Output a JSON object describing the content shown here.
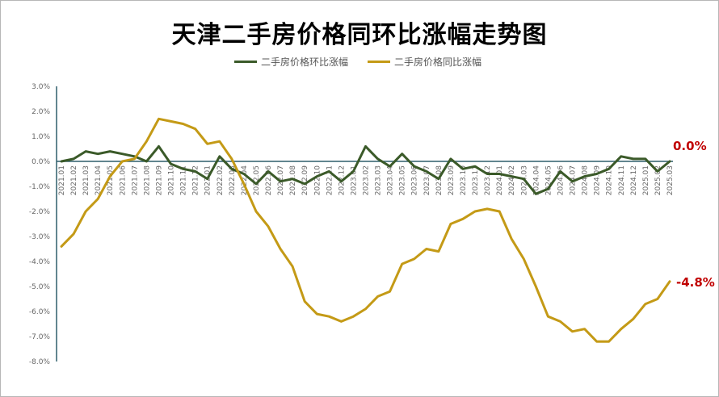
{
  "chart_data": {
    "type": "line",
    "title": "天津二手房价格同环比涨幅走势图",
    "xlabel": "",
    "ylabel": "",
    "ylim": [
      -8.0,
      3.0
    ],
    "ytick_step": 1.0,
    "grid": false,
    "legend_position": "top-center",
    "categories": [
      "2021.01",
      "2021.02",
      "2021.03",
      "2021.04",
      "2021.05",
      "2021.06",
      "2021.07",
      "2021.08",
      "2021.09",
      "2021.10",
      "2021.11",
      "2021.12",
      "2022.01",
      "2022.02",
      "2022.03",
      "2022.04",
      "2022.05",
      "2022.06",
      "2022.07",
      "2022.08",
      "2022.09",
      "2022.10",
      "2022.11",
      "2022.12",
      "2023.01",
      "2023.02",
      "2023.03",
      "2023.04",
      "2023.05",
      "2023.06",
      "2023.07",
      "2023.08",
      "2023.09",
      "2023.10",
      "2023.11",
      "2023.12",
      "2024.01",
      "2024.02",
      "2024.03",
      "2024.04",
      "2024.05",
      "2024.06",
      "2024.07",
      "2024.08",
      "2024.09",
      "2024.10",
      "2024.11",
      "2024.12",
      "2025.01",
      "2025.02",
      "2025.03"
    ],
    "series": [
      {
        "name": "二手房价格环比涨幅",
        "color": "#3b5a29",
        "values": [
          0.0,
          0.1,
          0.4,
          0.3,
          0.4,
          0.3,
          0.2,
          0.0,
          0.6,
          -0.1,
          -0.3,
          -0.4,
          -0.7,
          0.2,
          -0.3,
          -0.5,
          -0.9,
          -0.4,
          -0.8,
          -0.7,
          -0.9,
          -0.6,
          -0.4,
          -0.8,
          -0.4,
          0.6,
          0.1,
          -0.2,
          0.3,
          -0.2,
          -0.4,
          -0.7,
          0.1,
          -0.3,
          -0.2,
          -0.5,
          -0.5,
          -0.6,
          -0.7,
          -1.3,
          -1.1,
          -0.4,
          -0.8,
          -0.6,
          -0.5,
          -0.3,
          0.2,
          0.1,
          0.1,
          -0.4,
          0.0
        ],
        "end_label": "0.0%"
      },
      {
        "name": "二手房价格同比涨幅",
        "color": "#c49a16",
        "values": [
          -3.4,
          -2.9,
          -2.0,
          -1.5,
          -0.6,
          0.0,
          0.1,
          0.8,
          1.7,
          1.6,
          1.5,
          1.3,
          0.7,
          0.8,
          0.1,
          -0.9,
          -2.0,
          -2.6,
          -3.5,
          -4.2,
          -5.6,
          -6.1,
          -6.2,
          -6.4,
          -6.2,
          -5.9,
          -5.4,
          -5.2,
          -4.1,
          -3.9,
          -3.5,
          -3.6,
          -2.5,
          -2.3,
          -2.0,
          -1.9,
          -2.0,
          -3.1,
          -3.9,
          -5.0,
          -6.2,
          -6.4,
          -6.8,
          -6.7,
          -7.2,
          -7.2,
          -6.7,
          -6.3,
          -5.7,
          -5.5,
          -4.8
        ],
        "end_label": "-4.8%"
      }
    ]
  }
}
